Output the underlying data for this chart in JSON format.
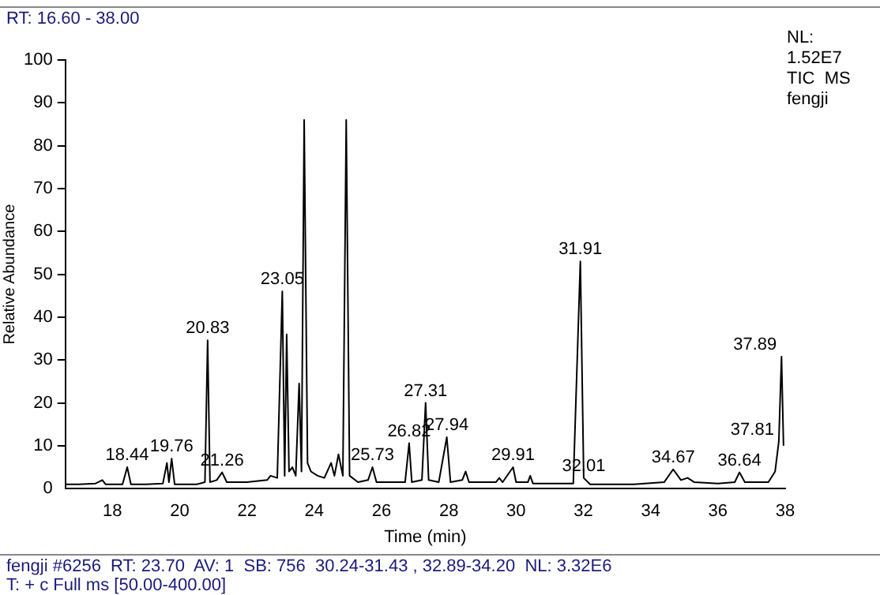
{
  "chart_data": {
    "type": "line",
    "xlabel": "Time (min)",
    "ylabel": "Relative Abundance",
    "xlim": [
      16.6,
      38
    ],
    "xticks": [
      18,
      20,
      22,
      24,
      26,
      28,
      30,
      32,
      34,
      36,
      38
    ],
    "ylim": [
      0,
      100
    ],
    "yticks": [
      0,
      10,
      20,
      30,
      40,
      50,
      60,
      70,
      80,
      90,
      100
    ],
    "grid": false,
    "legend": false,
    "marker": "none",
    "line_style": "solid",
    "series": [
      {
        "color": "#000000",
        "x": [
          16.6,
          17.0,
          17.5,
          17.7,
          17.8,
          18.3,
          18.44,
          18.55,
          19.0,
          19.5,
          19.62,
          19.68,
          19.76,
          19.85,
          20.5,
          20.75,
          20.83,
          20.9,
          21.1,
          21.26,
          21.4,
          22.0,
          22.6,
          22.7,
          22.9,
          23.05,
          23.12,
          23.18,
          23.25,
          23.35,
          23.45,
          23.55,
          23.62,
          23.7,
          23.8,
          23.9,
          24.1,
          24.3,
          24.5,
          24.6,
          24.72,
          24.85,
          24.95,
          25.05,
          25.3,
          25.6,
          25.73,
          25.85,
          26.4,
          26.7,
          26.82,
          26.9,
          27.2,
          27.31,
          27.4,
          27.7,
          27.94,
          28.05,
          28.4,
          28.5,
          28.6,
          29.4,
          29.5,
          29.6,
          29.91,
          30.0,
          30.35,
          30.42,
          30.5,
          31.7,
          31.91,
          32.01,
          32.2,
          33.5,
          34.4,
          34.67,
          34.9,
          35.1,
          35.3,
          36.0,
          36.5,
          36.64,
          36.8,
          37.5,
          37.7,
          37.81,
          37.89,
          37.95
        ],
        "values": [
          1,
          1,
          1.2,
          2,
          1,
          1,
          5,
          1,
          1,
          1.2,
          6,
          1.5,
          7,
          1,
          1,
          1.5,
          34.6,
          1.5,
          2,
          3.8,
          1.5,
          1.5,
          2,
          3,
          2.5,
          46,
          3,
          36,
          4,
          5,
          3,
          24.5,
          4,
          86,
          6,
          4,
          3,
          2.5,
          6,
          3,
          8,
          3,
          86,
          3,
          1.5,
          2,
          5,
          1.5,
          1.5,
          1.5,
          10.6,
          1.5,
          2,
          20,
          2,
          1.5,
          12,
          1.5,
          2,
          4,
          1.5,
          1.5,
          2.5,
          1.5,
          5,
          1.5,
          1.5,
          3,
          1.2,
          1.2,
          53,
          2.5,
          1,
          1,
          1.5,
          4.5,
          2,
          2.5,
          1.5,
          1.2,
          1.5,
          3.8,
          1.5,
          1.5,
          4,
          11,
          30.8,
          10
        ]
      }
    ],
    "annotations": [
      "RT: 16.60 - 38.00",
      "NL:",
      "1.52E7",
      "TIC  MS",
      "fengji",
      "fengji #6256  RT: 23.70  AV: 1  SB: 756  30.24-31.43 , 32.89-34.20  NL: 3.32E6",
      "T: + c Full ms [50.00-400.00]",
      {
        "text": "18.44",
        "x": 18.44,
        "y": 5
      },
      {
        "text": "19.76",
        "x": 19.76,
        "y": 7
      },
      {
        "text": "20.83",
        "x": 20.83,
        "y": 34.6
      },
      {
        "text": "21.26",
        "x": 21.26,
        "y": 3.8
      },
      {
        "text": "23.05",
        "x": 23.05,
        "y": 46
      },
      {
        "text": "25.73",
        "x": 25.73,
        "y": 5
      },
      {
        "text": "26.82",
        "x": 26.82,
        "y": 10.6
      },
      {
        "text": "27.31",
        "x": 27.31,
        "y": 20
      },
      {
        "text": "27.94",
        "x": 27.94,
        "y": 12
      },
      {
        "text": "29.91",
        "x": 29.91,
        "y": 5
      },
      {
        "text": "31.91",
        "x": 31.91,
        "y": 53
      },
      {
        "text": "32.01",
        "x": 32.01,
        "y": 2.5
      },
      {
        "text": "34.67",
        "x": 34.67,
        "y": 4.5
      },
      {
        "text": "36.64",
        "x": 36.64,
        "y": 3.8
      },
      {
        "text": "37.81",
        "x": 37.81,
        "y": 11
      },
      {
        "text": "37.89",
        "x": 37.89,
        "y": 30.8
      }
    ]
  }
}
